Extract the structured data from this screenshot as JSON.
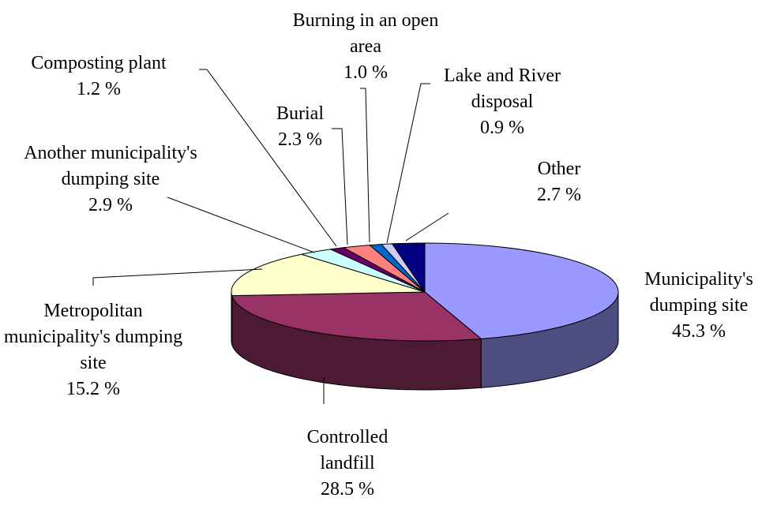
{
  "chart_data": {
    "type": "pie3d",
    "categories": [
      "Municipality's dumping site",
      "Controlled landfill",
      "Metropolitan municipality's dumping site",
      "Another municipality's dumping site",
      "Composting plant",
      "Burial",
      "Burning in an open area",
      "Lake and River disposal",
      "Other"
    ],
    "values": [
      45.3,
      28.5,
      15.2,
      2.9,
      1.2,
      2.3,
      1.0,
      0.9,
      2.7
    ],
    "value_labels": [
      "45.3 %",
      "28.5 %",
      "15.2 %",
      "2.9 %",
      "1.2 %",
      "2.3 %",
      "1.0 %",
      "0.9 %",
      "2.7 %"
    ],
    "colors": [
      "#9999ff",
      "#993366",
      "#ffffcc",
      "#ccffff",
      "#660066",
      "#ff8080",
      "#0066cc",
      "#ccccff",
      "#000080"
    ]
  }
}
